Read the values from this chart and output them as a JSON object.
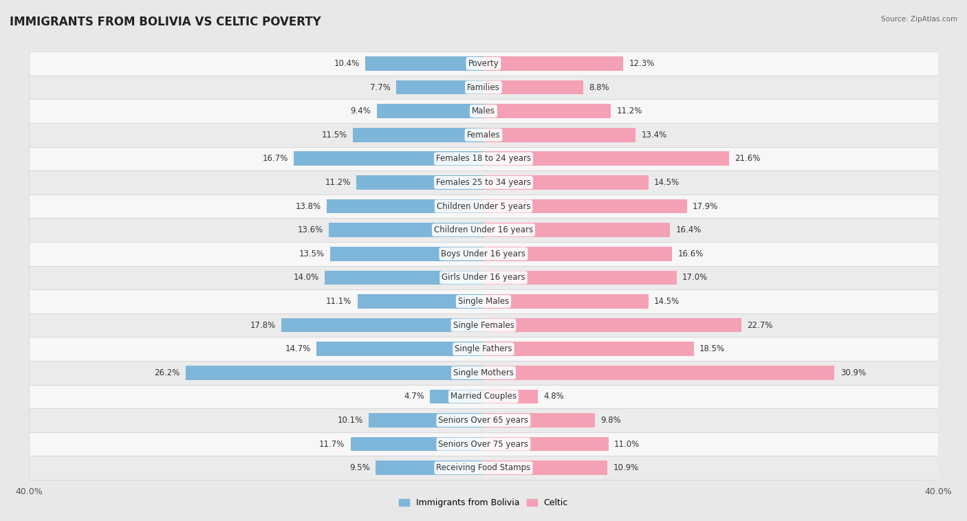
{
  "title": "IMMIGRANTS FROM BOLIVIA VS CELTIC POVERTY",
  "source": "Source: ZipAtlas.com",
  "categories": [
    "Poverty",
    "Families",
    "Males",
    "Females",
    "Females 18 to 24 years",
    "Females 25 to 34 years",
    "Children Under 5 years",
    "Children Under 16 years",
    "Boys Under 16 years",
    "Girls Under 16 years",
    "Single Males",
    "Single Females",
    "Single Fathers",
    "Single Mothers",
    "Married Couples",
    "Seniors Over 65 years",
    "Seniors Over 75 years",
    "Receiving Food Stamps"
  ],
  "bolivia_values": [
    10.4,
    7.7,
    9.4,
    11.5,
    16.7,
    11.2,
    13.8,
    13.6,
    13.5,
    14.0,
    11.1,
    17.8,
    14.7,
    26.2,
    4.7,
    10.1,
    11.7,
    9.5
  ],
  "celtic_values": [
    12.3,
    8.8,
    11.2,
    13.4,
    21.6,
    14.5,
    17.9,
    16.4,
    16.6,
    17.0,
    14.5,
    22.7,
    18.5,
    30.9,
    4.8,
    9.8,
    11.0,
    10.9
  ],
  "bolivia_color": "#7EB6D9",
  "celtic_color": "#F4A0B5",
  "bar_height": 0.6,
  "xlim": 40.0,
  "row_color_even": "#f7f7f7",
  "row_color_odd": "#ebebeb",
  "label_fontsize": 8.5,
  "value_fontsize": 8.5,
  "title_fontsize": 12,
  "fig_bg": "#e8e8e8"
}
